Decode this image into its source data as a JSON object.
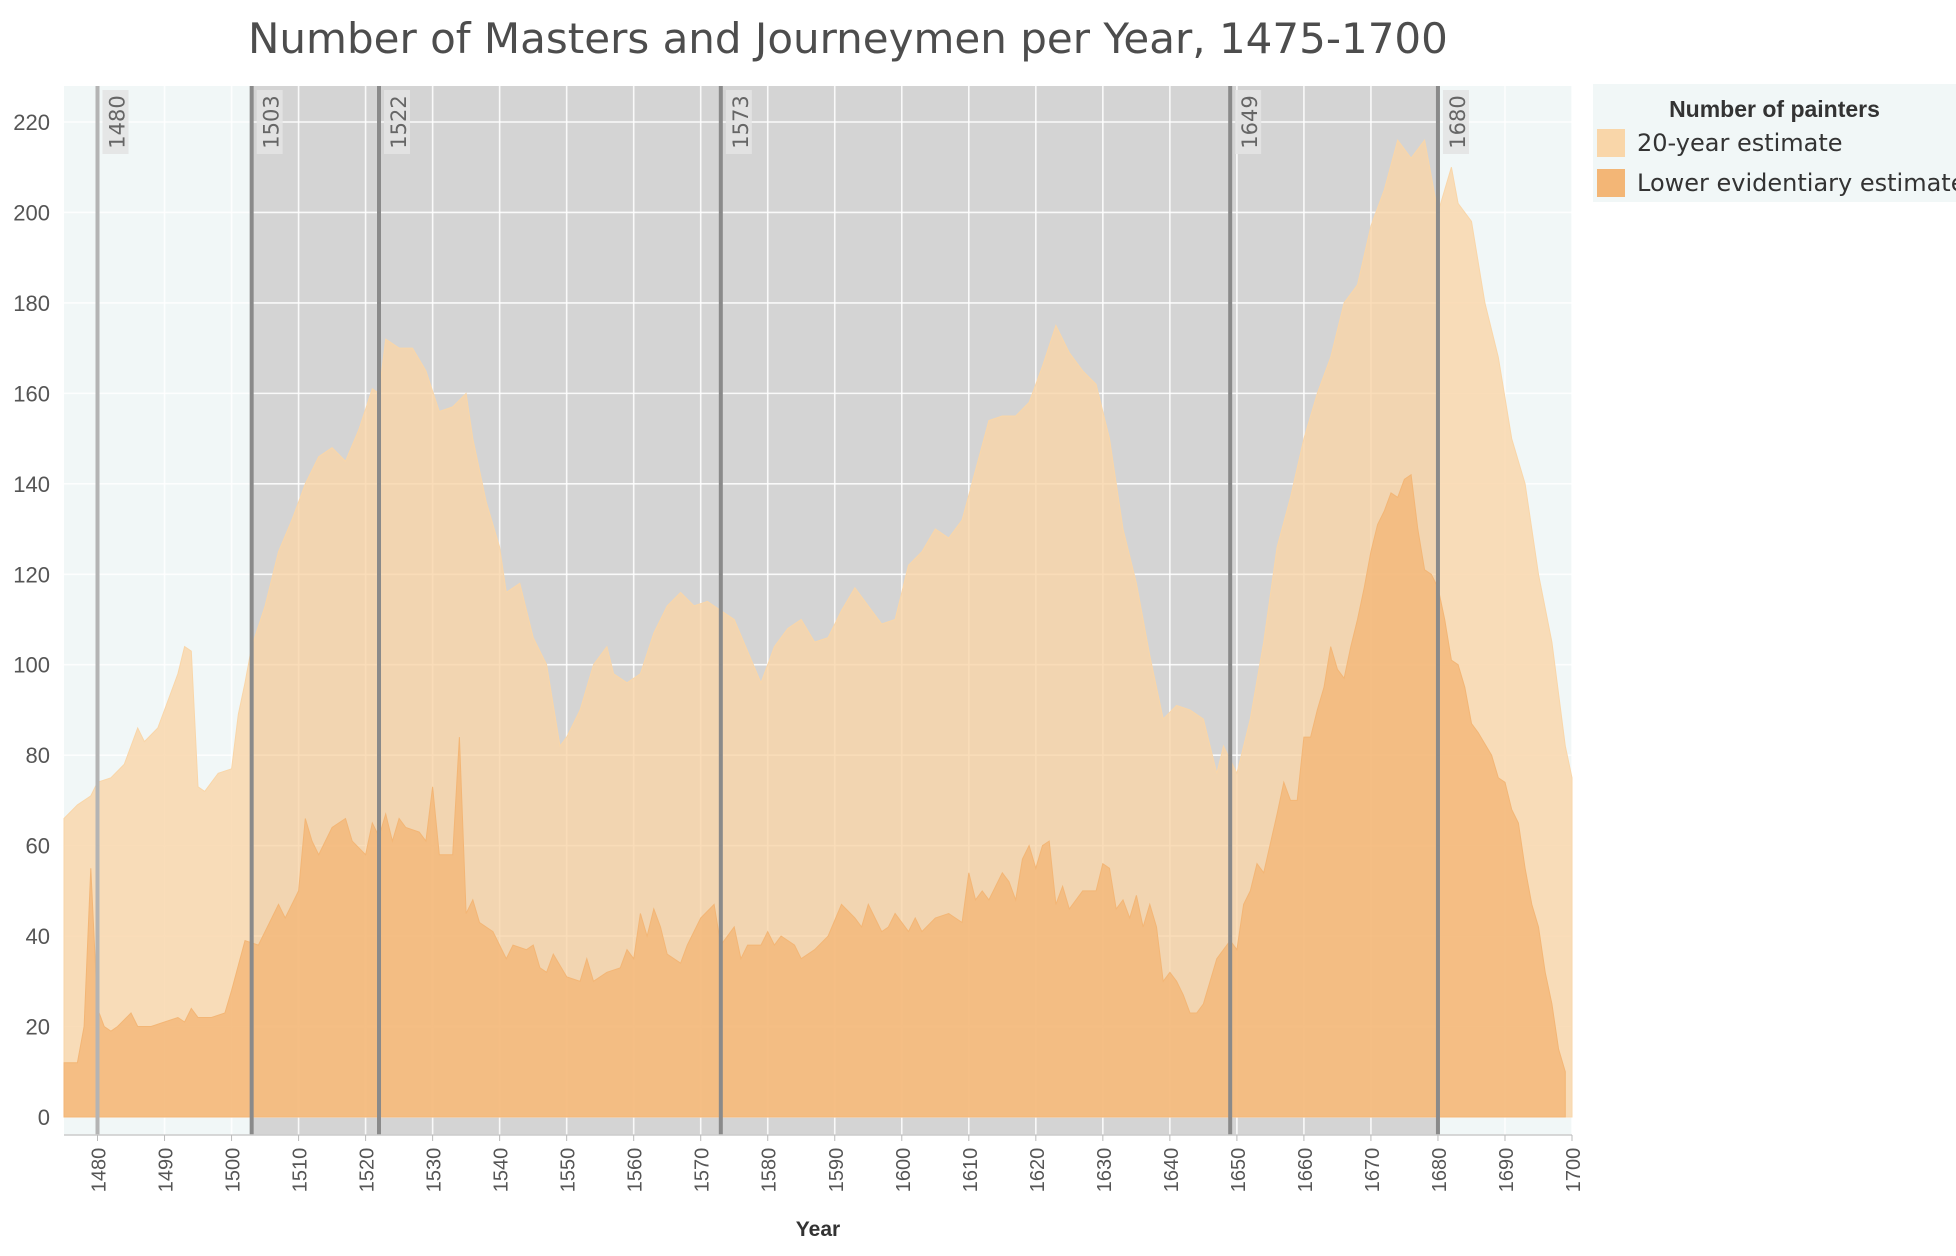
{
  "chart_data": {
    "type": "area",
    "title": "Number of Masters and Journeymen per Year, 1475-1700",
    "xlabel": "Year",
    "ylabel": "",
    "xlim": [
      1475,
      1700
    ],
    "ylim": [
      0,
      225
    ],
    "x_ticks": [
      1480,
      1490,
      1500,
      1510,
      1520,
      1530,
      1540,
      1550,
      1560,
      1570,
      1580,
      1590,
      1600,
      1610,
      1620,
      1630,
      1640,
      1650,
      1660,
      1670,
      1680,
      1690,
      1700
    ],
    "y_ticks": [
      0,
      20,
      40,
      60,
      80,
      100,
      120,
      140,
      160,
      180,
      200,
      220
    ],
    "grid": true,
    "legend": {
      "title": "Number of painters",
      "placement": "right",
      "entries": [
        {
          "label": "20-year estimate",
          "color": "#f9d6a9"
        },
        {
          "label": "Lower evidentiary estimate",
          "color": "#f3b676"
        }
      ]
    },
    "series": [
      {
        "name": "20-year estimate",
        "color": "#f9d6a9",
        "points": [
          [
            1475,
            66
          ],
          [
            1477,
            69
          ],
          [
            1479,
            71
          ],
          [
            1480,
            74
          ],
          [
            1482,
            75
          ],
          [
            1484,
            78
          ],
          [
            1486,
            86
          ],
          [
            1487,
            83
          ],
          [
            1489,
            86
          ],
          [
            1490,
            90
          ],
          [
            1492,
            98
          ],
          [
            1493,
            104
          ],
          [
            1494,
            103
          ],
          [
            1495,
            73
          ],
          [
            1496,
            72
          ],
          [
            1498,
            76
          ],
          [
            1500,
            77
          ],
          [
            1501,
            89
          ],
          [
            1502,
            96
          ],
          [
            1503,
            104
          ],
          [
            1505,
            113
          ],
          [
            1507,
            125
          ],
          [
            1509,
            132
          ],
          [
            1511,
            140
          ],
          [
            1513,
            146
          ],
          [
            1515,
            148
          ],
          [
            1517,
            145
          ],
          [
            1519,
            152
          ],
          [
            1521,
            161
          ],
          [
            1522,
            160
          ],
          [
            1523,
            172
          ],
          [
            1525,
            170
          ],
          [
            1527,
            170
          ],
          [
            1529,
            165
          ],
          [
            1531,
            156
          ],
          [
            1533,
            157
          ],
          [
            1535,
            160
          ],
          [
            1536,
            150
          ],
          [
            1538,
            136
          ],
          [
            1540,
            126
          ],
          [
            1541,
            116
          ],
          [
            1543,
            118
          ],
          [
            1545,
            106
          ],
          [
            1547,
            100
          ],
          [
            1549,
            82
          ],
          [
            1550,
            84
          ],
          [
            1552,
            90
          ],
          [
            1554,
            100
          ],
          [
            1556,
            104
          ],
          [
            1557,
            98
          ],
          [
            1559,
            96
          ],
          [
            1561,
            98
          ],
          [
            1563,
            107
          ],
          [
            1565,
            113
          ],
          [
            1567,
            116
          ],
          [
            1569,
            113
          ],
          [
            1571,
            114
          ],
          [
            1573,
            112
          ],
          [
            1575,
            110
          ],
          [
            1577,
            103
          ],
          [
            1579,
            96
          ],
          [
            1581,
            104
          ],
          [
            1583,
            108
          ],
          [
            1585,
            110
          ],
          [
            1587,
            105
          ],
          [
            1589,
            106
          ],
          [
            1591,
            112
          ],
          [
            1593,
            117
          ],
          [
            1595,
            113
          ],
          [
            1597,
            109
          ],
          [
            1599,
            110
          ],
          [
            1601,
            122
          ],
          [
            1603,
            125
          ],
          [
            1605,
            130
          ],
          [
            1607,
            128
          ],
          [
            1609,
            132
          ],
          [
            1611,
            143
          ],
          [
            1613,
            154
          ],
          [
            1615,
            155
          ],
          [
            1617,
            155
          ],
          [
            1619,
            158
          ],
          [
            1621,
            166
          ],
          [
            1623,
            175
          ],
          [
            1625,
            169
          ],
          [
            1627,
            165
          ],
          [
            1629,
            162
          ],
          [
            1631,
            150
          ],
          [
            1633,
            130
          ],
          [
            1635,
            118
          ],
          [
            1637,
            102
          ],
          [
            1639,
            88
          ],
          [
            1641,
            91
          ],
          [
            1643,
            90
          ],
          [
            1645,
            88
          ],
          [
            1647,
            76
          ],
          [
            1648,
            82
          ],
          [
            1650,
            76
          ],
          [
            1652,
            88
          ],
          [
            1654,
            105
          ],
          [
            1656,
            126
          ],
          [
            1658,
            137
          ],
          [
            1660,
            150
          ],
          [
            1662,
            160
          ],
          [
            1664,
            168
          ],
          [
            1666,
            180
          ],
          [
            1668,
            184
          ],
          [
            1670,
            197
          ],
          [
            1672,
            205
          ],
          [
            1674,
            216
          ],
          [
            1676,
            212
          ],
          [
            1678,
            216
          ],
          [
            1680,
            200
          ],
          [
            1682,
            210
          ],
          [
            1683,
            202
          ],
          [
            1685,
            198
          ],
          [
            1687,
            180
          ],
          [
            1689,
            168
          ],
          [
            1691,
            150
          ],
          [
            1693,
            140
          ],
          [
            1695,
            120
          ],
          [
            1697,
            105
          ],
          [
            1699,
            82
          ],
          [
            1700,
            75
          ]
        ]
      },
      {
        "name": "Lower evidentiary estimate",
        "color": "#f3b676",
        "points": [
          [
            1475,
            12
          ],
          [
            1477,
            12
          ],
          [
            1478,
            20
          ],
          [
            1479,
            55
          ],
          [
            1480,
            24
          ],
          [
            1481,
            20
          ],
          [
            1482,
            19
          ],
          [
            1483,
            20
          ],
          [
            1485,
            23
          ],
          [
            1486,
            20
          ],
          [
            1488,
            20
          ],
          [
            1490,
            21
          ],
          [
            1492,
            22
          ],
          [
            1493,
            21
          ],
          [
            1494,
            24
          ],
          [
            1495,
            22
          ],
          [
            1497,
            22
          ],
          [
            1499,
            23
          ],
          [
            1500,
            28
          ],
          [
            1502,
            39
          ],
          [
            1504,
            38
          ],
          [
            1506,
            44
          ],
          [
            1507,
            47
          ],
          [
            1508,
            44
          ],
          [
            1510,
            50
          ],
          [
            1511,
            66
          ],
          [
            1512,
            61
          ],
          [
            1513,
            58
          ],
          [
            1515,
            64
          ],
          [
            1517,
            66
          ],
          [
            1518,
            61
          ],
          [
            1520,
            58
          ],
          [
            1521,
            65
          ],
          [
            1522,
            62
          ],
          [
            1523,
            67
          ],
          [
            1524,
            61
          ],
          [
            1525,
            66
          ],
          [
            1526,
            64
          ],
          [
            1528,
            63
          ],
          [
            1529,
            61
          ],
          [
            1530,
            73
          ],
          [
            1531,
            58
          ],
          [
            1533,
            58
          ],
          [
            1534,
            84
          ],
          [
            1535,
            45
          ],
          [
            1536,
            48
          ],
          [
            1537,
            43
          ],
          [
            1539,
            41
          ],
          [
            1541,
            35
          ],
          [
            1542,
            38
          ],
          [
            1544,
            37
          ],
          [
            1545,
            38
          ],
          [
            1546,
            33
          ],
          [
            1547,
            32
          ],
          [
            1548,
            36
          ],
          [
            1550,
            31
          ],
          [
            1552,
            30
          ],
          [
            1553,
            35
          ],
          [
            1554,
            30
          ],
          [
            1556,
            32
          ],
          [
            1558,
            33
          ],
          [
            1559,
            37
          ],
          [
            1560,
            35
          ],
          [
            1561,
            45
          ],
          [
            1562,
            40
          ],
          [
            1563,
            46
          ],
          [
            1564,
            42
          ],
          [
            1565,
            36
          ],
          [
            1567,
            34
          ],
          [
            1568,
            38
          ],
          [
            1570,
            44
          ],
          [
            1572,
            47
          ],
          [
            1573,
            38
          ],
          [
            1574,
            40
          ],
          [
            1575,
            42
          ],
          [
            1576,
            35
          ],
          [
            1577,
            38
          ],
          [
            1579,
            38
          ],
          [
            1580,
            41
          ],
          [
            1581,
            38
          ],
          [
            1582,
            40
          ],
          [
            1584,
            38
          ],
          [
            1585,
            35
          ],
          [
            1587,
            37
          ],
          [
            1589,
            40
          ],
          [
            1591,
            47
          ],
          [
            1593,
            44
          ],
          [
            1594,
            42
          ],
          [
            1595,
            47
          ],
          [
            1597,
            41
          ],
          [
            1598,
            42
          ],
          [
            1599,
            45
          ],
          [
            1601,
            41
          ],
          [
            1602,
            44
          ],
          [
            1603,
            41
          ],
          [
            1605,
            44
          ],
          [
            1607,
            45
          ],
          [
            1609,
            43
          ],
          [
            1610,
            54
          ],
          [
            1611,
            48
          ],
          [
            1612,
            50
          ],
          [
            1613,
            48
          ],
          [
            1615,
            54
          ],
          [
            1616,
            52
          ],
          [
            1617,
            48
          ],
          [
            1618,
            57
          ],
          [
            1619,
            60
          ],
          [
            1620,
            55
          ],
          [
            1621,
            60
          ],
          [
            1622,
            61
          ],
          [
            1623,
            47
          ],
          [
            1624,
            51
          ],
          [
            1625,
            46
          ],
          [
            1626,
            48
          ],
          [
            1627,
            50
          ],
          [
            1629,
            50
          ],
          [
            1630,
            56
          ],
          [
            1631,
            55
          ],
          [
            1632,
            46
          ],
          [
            1633,
            48
          ],
          [
            1634,
            44
          ],
          [
            1635,
            49
          ],
          [
            1636,
            42
          ],
          [
            1637,
            47
          ],
          [
            1638,
            42
          ],
          [
            1639,
            30
          ],
          [
            1640,
            32
          ],
          [
            1641,
            30
          ],
          [
            1642,
            27
          ],
          [
            1643,
            23
          ],
          [
            1644,
            23
          ],
          [
            1645,
            25
          ],
          [
            1647,
            35
          ],
          [
            1649,
            39
          ],
          [
            1650,
            37
          ],
          [
            1651,
            47
          ],
          [
            1652,
            50
          ],
          [
            1653,
            56
          ],
          [
            1654,
            54
          ],
          [
            1656,
            67
          ],
          [
            1657,
            74
          ],
          [
            1658,
            70
          ],
          [
            1659,
            70
          ],
          [
            1660,
            84
          ],
          [
            1661,
            84
          ],
          [
            1662,
            90
          ],
          [
            1663,
            95
          ],
          [
            1664,
            104
          ],
          [
            1665,
            99
          ],
          [
            1666,
            97
          ],
          [
            1667,
            104
          ],
          [
            1668,
            110
          ],
          [
            1669,
            117
          ],
          [
            1670,
            125
          ],
          [
            1671,
            131
          ],
          [
            1672,
            134
          ],
          [
            1673,
            138
          ],
          [
            1674,
            137
          ],
          [
            1675,
            141
          ],
          [
            1676,
            142
          ],
          [
            1677,
            130
          ],
          [
            1678,
            121
          ],
          [
            1679,
            120
          ],
          [
            1680,
            117
          ],
          [
            1681,
            110
          ],
          [
            1682,
            101
          ],
          [
            1683,
            100
          ],
          [
            1684,
            95
          ],
          [
            1685,
            87
          ],
          [
            1686,
            85
          ],
          [
            1688,
            80
          ],
          [
            1689,
            75
          ],
          [
            1690,
            74
          ],
          [
            1691,
            68
          ],
          [
            1692,
            65
          ],
          [
            1693,
            55
          ],
          [
            1694,
            47
          ],
          [
            1695,
            42
          ],
          [
            1696,
            32
          ],
          [
            1697,
            25
          ],
          [
            1698,
            15
          ],
          [
            1699,
            10
          ]
        ]
      }
    ],
    "reference_lines": [
      {
        "x": 1480,
        "label": "1480"
      },
      {
        "x": 1503,
        "label": "1503"
      },
      {
        "x": 1522,
        "label": "1522"
      },
      {
        "x": 1573,
        "label": "1573"
      },
      {
        "x": 1649,
        "label": "1649"
      },
      {
        "x": 1680,
        "label": "1680"
      }
    ],
    "shaded_regions": [
      {
        "from": 1503,
        "to": 1522,
        "color": "#d4d4d4"
      },
      {
        "from": 1522,
        "to": 1573,
        "color": "#d4d4d4"
      },
      {
        "from": 1573,
        "to": 1649,
        "color": "#d4d4d4"
      },
      {
        "from": 1649,
        "to": 1680,
        "color": "#d4d4d4"
      }
    ],
    "plot_background": "#f1f7f7"
  }
}
